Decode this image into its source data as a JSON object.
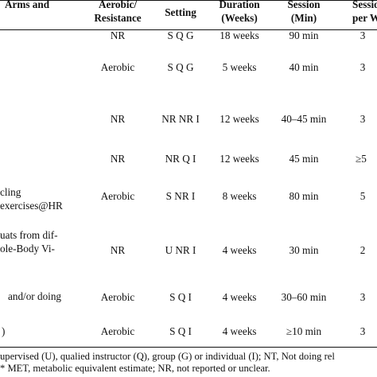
{
  "header": {
    "arms_line1": "Arms and",
    "type_line1": "Aerobic/",
    "type_line2": "Resistance",
    "setting": "Setting",
    "duration_line1": "Duration",
    "duration_line2": "(Weeks)",
    "session_line1": "Session",
    "session_line2": "(Min)",
    "sessions_line1": "Sessions",
    "sessions_line2": "per Week"
  },
  "rows": [
    {
      "arms": [],
      "type": "NR",
      "setting": "S Q G",
      "duration": "18 weeks",
      "session": "90 min",
      "per_week": "3"
    },
    {
      "arms": [],
      "type": "Aerobic",
      "setting": "S Q G",
      "duration": "5 weeks",
      "session": "40 min",
      "per_week": "3"
    },
    {
      "arms": [],
      "type": "NR",
      "setting": "NR NR I",
      "duration": "12 weeks",
      "session": "40–45 min",
      "per_week": "3"
    },
    {
      "arms": [],
      "type": "NR",
      "setting": "NR Q I",
      "duration": "12 weeks",
      "session": "45 min",
      "per_week": "≥5"
    },
    {
      "arms": [
        "cling",
        "exercises@HR"
      ],
      "type": "Aerobic",
      "setting": "S NR I",
      "duration": "8 weeks",
      "session": "80 min",
      "per_week": "5"
    },
    {
      "arms": [
        "uats from dif-",
        "ole-Body Vi-"
      ],
      "type": "NR",
      "setting": "U NR I",
      "duration": "4 weeks",
      "session": "30 min",
      "per_week": "2"
    },
    {
      "arms": [
        "and/or doing"
      ],
      "type": "Aerobic",
      "setting": "S Q I",
      "duration": "4 weeks",
      "session": "30–60 min",
      "per_week": "3"
    },
    {
      "arms": [
        ")"
      ],
      "type": "Aerobic",
      "setting": "S Q I",
      "duration": "4 weeks",
      "session": "≥10 min",
      "per_week": "3"
    }
  ],
  "footnotes": [
    "upervised (U), qualied instructor (Q), group (G) or individual (I); NT, Not doing rel",
    "* MET, metabolic equivalent estimate; NR, not reported or unclear."
  ]
}
